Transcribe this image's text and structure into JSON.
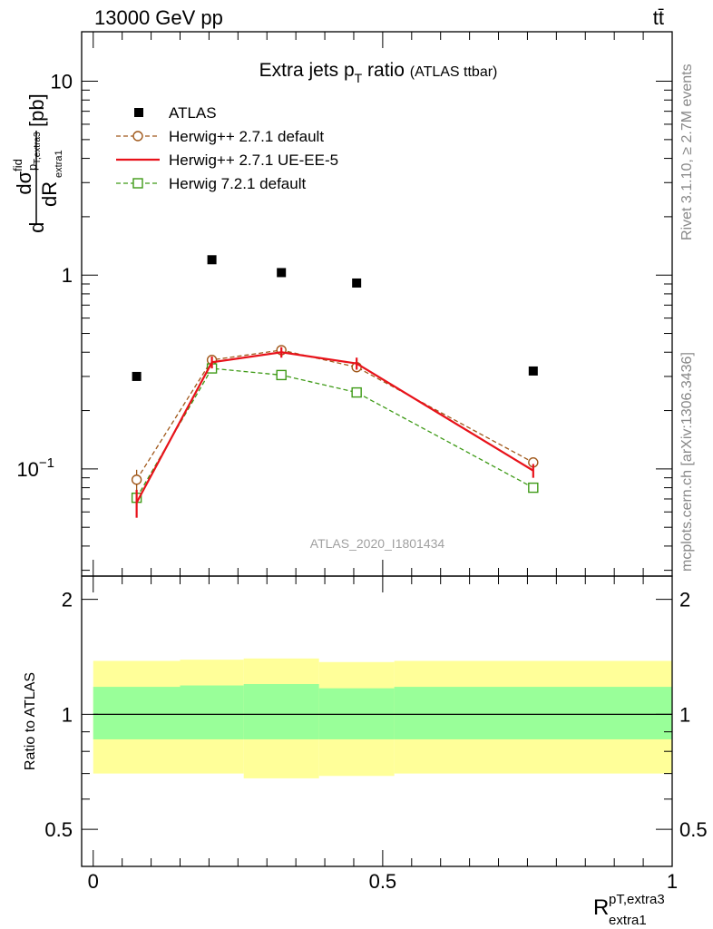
{
  "header": {
    "left": "13000 GeV pp",
    "right": "tt̄"
  },
  "side_labels": {
    "rivet": "Rivet 3.1.10, ≥ 2.7M events",
    "mcplots": "mcplots.cern.ch [arXiv:1306.3436]"
  },
  "watermark": "ATLAS_2020_I1801434",
  "chart_data": [
    {
      "type": "scatter",
      "title": "Extra jets pT ratio",
      "subtitle": "(ATLAS ttbar)",
      "ylabel": "dσ^fid / dR_extra1^(pT,extra3) [pb]",
      "xlabel": "R_extra1^(pT,extra3)",
      "xlim": [
        -0.02,
        1.0
      ],
      "ylim": [
        0.028,
        18
      ],
      "yscale": "log",
      "yticklabels": [
        "10^−1",
        "1",
        "10"
      ],
      "xticklabels": [
        "0",
        "0.5",
        "1"
      ],
      "legend_position": "top-left",
      "series": [
        {
          "name": "ATLAS",
          "style": "data",
          "color": "#000000",
          "x": [
            0.075,
            0.205,
            0.325,
            0.455,
            0.76
          ],
          "y": [
            0.3,
            1.2,
            1.03,
            0.91,
            0.32
          ]
        },
        {
          "name": "Herwig++ 2.7.1 default",
          "style": "dashed-circle",
          "color": "#a0581a",
          "x": [
            0.075,
            0.205,
            0.325,
            0.455,
            0.76
          ],
          "y": [
            0.088,
            0.365,
            0.41,
            0.335,
            0.108
          ],
          "err": [
            0.011,
            0.02,
            0.02,
            0.02,
            0.006
          ]
        },
        {
          "name": "Herwig++ 2.7.1 UE-EE-5",
          "style": "solid",
          "color": "#e8121a",
          "x": [
            0.075,
            0.205,
            0.325,
            0.455,
            0.76
          ],
          "y": [
            0.067,
            0.355,
            0.4,
            0.35,
            0.098
          ],
          "err": [
            0.011,
            0.025,
            0.025,
            0.025,
            0.008
          ]
        },
        {
          "name": "Herwig 7.2.1 default",
          "style": "dashed-square",
          "color": "#3e9a16",
          "x": [
            0.075,
            0.205,
            0.325,
            0.455,
            0.76
          ],
          "y": [
            0.071,
            0.33,
            0.305,
            0.248,
            0.08
          ],
          "err": [
            0.005,
            0.01,
            0.01,
            0.01,
            0.004
          ]
        }
      ]
    },
    {
      "type": "area",
      "ylabel": "Ratio to ATLAS",
      "xlim": [
        -0.02,
        1.0
      ],
      "ylim": [
        0.4,
        2.3
      ],
      "yscale": "log",
      "yticklabels": [
        "0.5",
        "1",
        "2"
      ],
      "reference_line": 1.0,
      "bins": [
        {
          "x0": 0.0,
          "x1": 0.15,
          "inner": [
            0.86,
            1.18
          ],
          "outer": [
            0.7,
            1.38
          ]
        },
        {
          "x0": 0.15,
          "x1": 0.26,
          "inner": [
            0.86,
            1.19
          ],
          "outer": [
            0.7,
            1.39
          ]
        },
        {
          "x0": 0.26,
          "x1": 0.39,
          "inner": [
            0.86,
            1.2
          ],
          "outer": [
            0.68,
            1.4
          ]
        },
        {
          "x0": 0.39,
          "x1": 0.52,
          "inner": [
            0.86,
            1.17
          ],
          "outer": [
            0.69,
            1.37
          ]
        },
        {
          "x0": 0.52,
          "x1": 1.0,
          "inner": [
            0.86,
            1.18
          ],
          "outer": [
            0.7,
            1.38
          ]
        }
      ],
      "band_colors": {
        "inner": "#99ff99",
        "outer": "#ffff99"
      }
    }
  ]
}
